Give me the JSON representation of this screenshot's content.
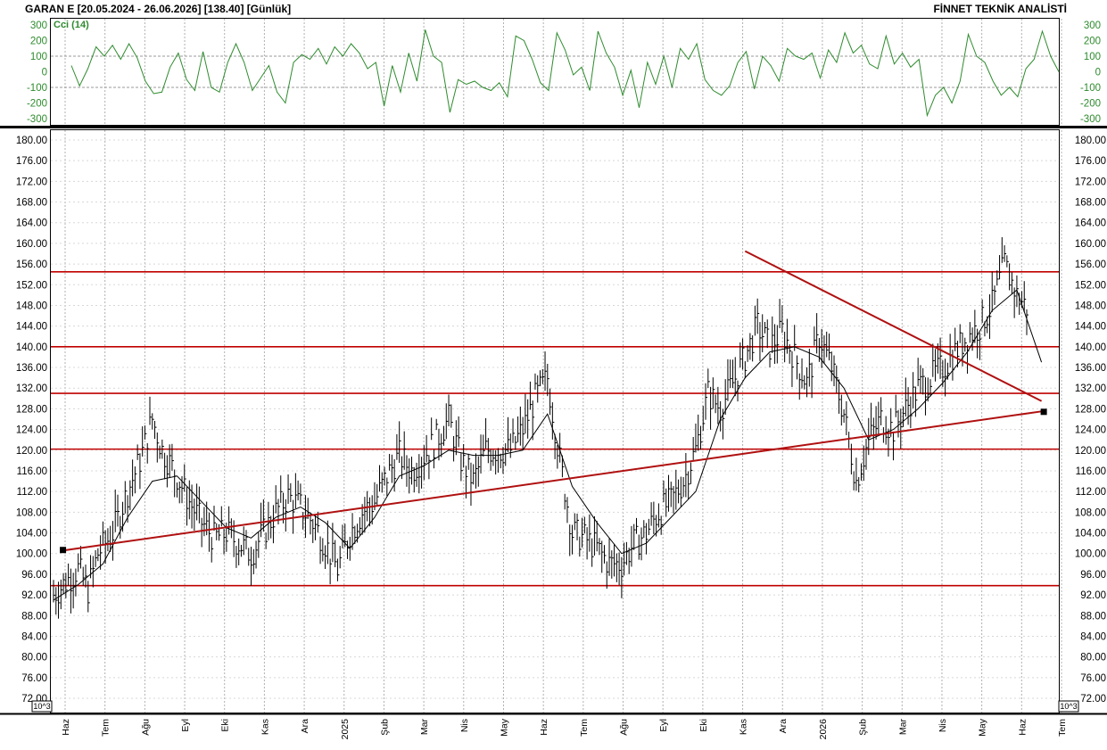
{
  "header": {
    "title": "GARAN E  [20.05.2024 - 26.06.2026]  [138.40]  [Günlük]",
    "brand": "FİNNET TEKNİK ANALİSTİ"
  },
  "colors": {
    "cci": "#2e8b2e",
    "price": "#000000",
    "level_lines": "#c00000",
    "trend_lines": "#b01010",
    "grid": "#b0b0b0"
  },
  "chart_data": [
    {
      "type": "line",
      "name": "cci-panel",
      "title": "Cci (14)",
      "ylim": [
        -340,
        340
      ],
      "y_ticks": [
        300,
        200,
        100,
        0,
        -100,
        -200,
        -300
      ],
      "y_tick_labels": [
        "300",
        "200",
        "100",
        "0",
        "-100",
        "-200",
        "-300"
      ],
      "reference_levels": [
        100,
        -100
      ],
      "grid": true,
      "series": [
        {
          "name": "Cci (14)",
          "points": [
            [
              0,
              40
            ],
            [
              1,
              -90
            ],
            [
              2,
              20
            ],
            [
              3,
              160
            ],
            [
              4,
              100
            ],
            [
              5,
              170
            ],
            [
              6,
              80
            ],
            [
              7,
              180
            ],
            [
              8,
              90
            ],
            [
              9,
              -60
            ],
            [
              10,
              -140
            ],
            [
              11,
              -130
            ],
            [
              12,
              30
            ],
            [
              13,
              120
            ],
            [
              14,
              -50
            ],
            [
              15,
              -120
            ],
            [
              16,
              130
            ],
            [
              17,
              -100
            ],
            [
              18,
              -130
            ],
            [
              19,
              60
            ],
            [
              20,
              180
            ],
            [
              21,
              60
            ],
            [
              22,
              -120
            ],
            [
              23,
              -40
            ],
            [
              24,
              40
            ],
            [
              25,
              -130
            ],
            [
              26,
              -200
            ],
            [
              27,
              60
            ],
            [
              28,
              110
            ],
            [
              29,
              80
            ],
            [
              30,
              150
            ],
            [
              31,
              50
            ],
            [
              32,
              160
            ],
            [
              33,
              100
            ],
            [
              34,
              180
            ],
            [
              35,
              120
            ],
            [
              36,
              20
            ],
            [
              37,
              60
            ],
            [
              38,
              -220
            ],
            [
              39,
              40
            ],
            [
              40,
              -130
            ],
            [
              41,
              120
            ],
            [
              42,
              -60
            ],
            [
              43,
              270
            ],
            [
              44,
              100
            ],
            [
              45,
              60
            ],
            [
              46,
              -260
            ],
            [
              47,
              -50
            ],
            [
              48,
              -80
            ],
            [
              49,
              -60
            ],
            [
              50,
              -100
            ],
            [
              51,
              -120
            ],
            [
              52,
              -70
            ],
            [
              53,
              -160
            ],
            [
              54,
              230
            ],
            [
              55,
              200
            ],
            [
              56,
              80
            ],
            [
              57,
              -70
            ],
            [
              58,
              -120
            ],
            [
              59,
              250
            ],
            [
              60,
              140
            ],
            [
              61,
              -20
            ],
            [
              62,
              30
            ],
            [
              63,
              -120
            ],
            [
              64,
              260
            ],
            [
              65,
              120
            ],
            [
              66,
              30
            ],
            [
              67,
              -150
            ],
            [
              68,
              10
            ],
            [
              69,
              -230
            ],
            [
              70,
              60
            ],
            [
              71,
              -80
            ],
            [
              72,
              100
            ],
            [
              73,
              -100
            ],
            [
              74,
              150
            ],
            [
              75,
              80
            ],
            [
              76,
              180
            ],
            [
              77,
              -50
            ],
            [
              78,
              -120
            ],
            [
              79,
              -150
            ],
            [
              80,
              -90
            ],
            [
              81,
              60
            ],
            [
              82,
              130
            ],
            [
              83,
              -110
            ],
            [
              84,
              100
            ],
            [
              85,
              40
            ],
            [
              86,
              -60
            ],
            [
              87,
              150
            ],
            [
              88,
              100
            ],
            [
              89,
              80
            ],
            [
              90,
              120
            ],
            [
              91,
              -40
            ],
            [
              92,
              140
            ],
            [
              93,
              60
            ],
            [
              94,
              250
            ],
            [
              95,
              120
            ],
            [
              96,
              170
            ],
            [
              97,
              50
            ],
            [
              98,
              20
            ],
            [
              99,
              230
            ],
            [
              100,
              50
            ],
            [
              101,
              120
            ],
            [
              102,
              30
            ],
            [
              103,
              80
            ],
            [
              104,
              -280
            ],
            [
              105,
              -150
            ],
            [
              106,
              -100
            ],
            [
              107,
              -200
            ],
            [
              108,
              -60
            ],
            [
              109,
              240
            ],
            [
              110,
              100
            ],
            [
              111,
              60
            ],
            [
              112,
              -60
            ],
            [
              113,
              -150
            ],
            [
              114,
              -100
            ],
            [
              115,
              -160
            ],
            [
              116,
              20
            ],
            [
              117,
              80
            ],
            [
              118,
              260
            ],
            [
              119,
              100
            ],
            [
              120,
              0
            ]
          ]
        }
      ]
    },
    {
      "type": "line",
      "name": "price-panel",
      "title": "",
      "ylim": [
        70,
        182
      ],
      "y_ticks": [
        180,
        176,
        172,
        168,
        164,
        160,
        156,
        152,
        148,
        144,
        140,
        136,
        132,
        128,
        124,
        120,
        116,
        112,
        108,
        104,
        100,
        96,
        92,
        88,
        84,
        80,
        76,
        72
      ],
      "y_tick_labels": [
        "180.00",
        "176.00",
        "172.00",
        "168.00",
        "164.00",
        "160.00",
        "156.00",
        "152.00",
        "148.00",
        "144.00",
        "140.00",
        "136.00",
        "132.00",
        "128.00",
        "124.00",
        "120.00",
        "116.00",
        "112.00",
        "108.00",
        "104.00",
        "100.00",
        "96.00",
        "92.00",
        "88.00",
        "84.00",
        "80.00",
        "76.00",
        "72.00"
      ],
      "scale_label": "10^3",
      "horizontal_levels": [
        154.5,
        140.0,
        131.0,
        120.2,
        93.8
      ],
      "trend_lines": [
        {
          "from": [
            0.4,
            100.6
          ],
          "to": [
            40.0,
            127.5
          ],
          "marker": "square"
        },
        {
          "from": [
            28.0,
            158.5
          ],
          "to": [
            40.0,
            129.5
          ]
        }
      ],
      "grid": true,
      "series": [
        {
          "name": "Fiyat",
          "points": [
            [
              0,
              92
            ],
            [
              0.4,
              94
            ],
            [
              1,
              97
            ],
            [
              1.4,
              93
            ],
            [
              1.8,
              100
            ],
            [
              2.4,
              104
            ],
            [
              3,
              112
            ],
            [
              3.5,
              118
            ],
            [
              4,
              126
            ],
            [
              4.4,
              120
            ],
            [
              5,
              115
            ],
            [
              5.5,
              110
            ],
            [
              6,
              106
            ],
            [
              6.5,
              103
            ],
            [
              7,
              104
            ],
            [
              7.5,
              102
            ],
            [
              8,
              100
            ],
            [
              8.5,
              104
            ],
            [
              9,
              108
            ],
            [
              9.5,
              111
            ],
            [
              10,
              109
            ],
            [
              10.5,
              106
            ],
            [
              11,
              102
            ],
            [
              11.5,
              97
            ],
            [
              12,
              104
            ],
            [
              12.5,
              108
            ],
            [
              13,
              110
            ],
            [
              13.5,
              115
            ],
            [
              14,
              119
            ],
            [
              14.5,
              116
            ],
            [
              15,
              119
            ],
            [
              15.5,
              122
            ],
            [
              16,
              126
            ],
            [
              16.5,
              118
            ],
            [
              17,
              114
            ],
            [
              17.5,
              120
            ],
            [
              18,
              120
            ],
            [
              18.5,
              120
            ],
            [
              19,
              124
            ],
            [
              19.5,
              130
            ],
            [
              20,
              134
            ],
            [
              20.5,
              118
            ],
            [
              21,
              104
            ],
            [
              21.5,
              103
            ],
            [
              22,
              101
            ],
            [
              22.5,
              98
            ],
            [
              23,
              98
            ],
            [
              23.5,
              102
            ],
            [
              24,
              104
            ],
            [
              24.5,
              108
            ],
            [
              25,
              110
            ],
            [
              25.5,
              114
            ],
            [
              26,
              120
            ],
            [
              26.5,
              131
            ],
            [
              27,
              128
            ],
            [
              27.5,
              133
            ],
            [
              28,
              138
            ],
            [
              28.5,
              144
            ],
            [
              29,
              140
            ],
            [
              29.5,
              143
            ],
            [
              30,
              138
            ],
            [
              30.5,
              133
            ],
            [
              31,
              142
            ],
            [
              31.5,
              136
            ],
            [
              32,
              127
            ],
            [
              32.5,
              114
            ],
            [
              33,
              122
            ],
            [
              33.5,
              126
            ],
            [
              34,
              124
            ],
            [
              34.5,
              128
            ],
            [
              35,
              132
            ],
            [
              35.5,
              134
            ],
            [
              36,
              136
            ],
            [
              36.5,
              139
            ],
            [
              37,
              142
            ],
            [
              37.5,
              144
            ],
            [
              38,
              148
            ],
            [
              38.5,
              156
            ],
            [
              39,
              150
            ],
            [
              39.5,
              147
            ]
          ]
        },
        {
          "name": "Ortalama",
          "points": [
            [
              0,
              91
            ],
            [
              1,
              94
            ],
            [
              2,
              98
            ],
            [
              3,
              107
            ],
            [
              4,
              114
            ],
            [
              5,
              115
            ],
            [
              6,
              110
            ],
            [
              7,
              105
            ],
            [
              8,
              103
            ],
            [
              9,
              107
            ],
            [
              10,
              109
            ],
            [
              11,
              106
            ],
            [
              12,
              101
            ],
            [
              13,
              107
            ],
            [
              14,
              115
            ],
            [
              15,
              117
            ],
            [
              16,
              120
            ],
            [
              17,
              119
            ],
            [
              18,
              119
            ],
            [
              19,
              120
            ],
            [
              20,
              127
            ],
            [
              21,
              113
            ],
            [
              22,
              106
            ],
            [
              23,
              100
            ],
            [
              24,
              102
            ],
            [
              25,
              107
            ],
            [
              26,
              112
            ],
            [
              27,
              126
            ],
            [
              28,
              134
            ],
            [
              29,
              139
            ],
            [
              30,
              140
            ],
            [
              31,
              138
            ],
            [
              32,
              132
            ],
            [
              33,
              122
            ],
            [
              34,
              124
            ],
            [
              35,
              128
            ],
            [
              36,
              133
            ],
            [
              37,
              139
            ],
            [
              38,
              147
            ],
            [
              39,
              151
            ],
            [
              40,
              137
            ]
          ]
        }
      ]
    }
  ],
  "months": [
    "Haz",
    "Tem",
    "Ağu",
    "Eyl",
    "Eki",
    "Kas",
    "Ara",
    "2025",
    "Şub",
    "Mar",
    "Nis",
    "May",
    "Haz",
    "Tem",
    "Ağu",
    "Eyl",
    "Eki",
    "Kas",
    "Ara",
    "2026",
    "Şub",
    "Mar",
    "Nis",
    "May",
    "Haz",
    "Tem"
  ]
}
